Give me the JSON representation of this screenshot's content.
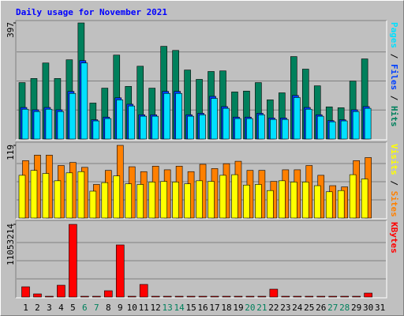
{
  "chart_data": [
    {
      "type": "bar",
      "title": "Daily usage for November 2021",
      "legend_separator": " / ",
      "ylim": [
        0,
        397
      ],
      "yticks": [
        397
      ],
      "series": [
        {
          "name": "Hits",
          "color": "#00805c",
          "values": [
            193,
            207,
            260,
            207,
            271,
            397,
            123,
            174,
            287,
            180,
            249,
            174,
            317,
            303,
            236,
            204,
            231,
            233,
            161,
            164,
            193,
            134,
            158,
            282,
            239,
            182,
            110,
            107,
            198,
            274,
            0
          ]
        },
        {
          "name": "Files",
          "color": "#0040ff",
          "values": [
            108,
            100,
            108,
            100,
            163,
            268,
            66,
            75,
            141,
            119,
            83,
            83,
            163,
            163,
            83,
            88,
            146,
            111,
            75,
            75,
            88,
            72,
            72,
            149,
            108,
            83,
            63,
            66,
            100,
            111,
            0
          ]
        },
        {
          "name": "Pages",
          "color": "#00e0ff",
          "values": [
            102,
            94,
            102,
            94,
            156,
            260,
            62,
            70,
            134,
            113,
            78,
            78,
            156,
            156,
            78,
            83,
            139,
            105,
            70,
            70,
            83,
            67,
            67,
            142,
            102,
            78,
            59,
            62,
            94,
            105,
            0
          ]
        }
      ]
    },
    {
      "type": "bar",
      "legend_separator": " / ",
      "ylim": [
        0,
        119
      ],
      "yticks": [
        119
      ],
      "series": [
        {
          "name": "Sites",
          "color": "#ff8000",
          "values": [
            94,
            103,
            103,
            86,
            91,
            83,
            55,
            78,
            119,
            84,
            76,
            85,
            79,
            85,
            76,
            88,
            81,
            89,
            93,
            78,
            78,
            60,
            79,
            79,
            86,
            70,
            53,
            51,
            94,
            99,
            0
          ]
        },
        {
          "name": "Visits",
          "color": "#ffff00",
          "values": [
            70,
            78,
            73,
            61,
            74,
            76,
            44,
            58,
            69,
            56,
            55,
            59,
            60,
            59,
            56,
            61,
            60,
            70,
            71,
            54,
            55,
            45,
            61,
            59,
            59,
            53,
            43,
            45,
            71,
            64,
            0
          ]
        }
      ]
    },
    {
      "type": "bar",
      "ylim": [
        0,
        11053214
      ],
      "yticks": [
        11053214
      ],
      "categories": [
        "1",
        "2",
        "3",
        "4",
        "5",
        "6",
        "7",
        "8",
        "9",
        "10",
        "11",
        "12",
        "13",
        "14",
        "15",
        "16",
        "17",
        "18",
        "19",
        "20",
        "21",
        "22",
        "23",
        "24",
        "25",
        "26",
        "27",
        "28",
        "29",
        "30",
        "31"
      ],
      "label_colors": [
        "#000000",
        "#000000",
        "#000000",
        "#000000",
        "#000000",
        "#00805c",
        "#00805c",
        "#000000",
        "#000000",
        "#000000",
        "#000000",
        "#000000",
        "#00805c",
        "#00805c",
        "#000000",
        "#000000",
        "#000000",
        "#000000",
        "#000000",
        "#00805c",
        "#00805c",
        "#000000",
        "#000000",
        "#000000",
        "#000000",
        "#000000",
        "#00805c",
        "#00805c",
        "#000000",
        "#000000",
        "#000000"
      ],
      "series": [
        {
          "name": "KBytes",
          "color": "#ff0000",
          "values": [
            1560000,
            480000,
            120000,
            1800000,
            11053214,
            120000,
            120000,
            960000,
            7930000,
            120000,
            1920000,
            120000,
            120000,
            120000,
            120000,
            120000,
            120000,
            120000,
            120000,
            120000,
            120000,
            1200000,
            120000,
            120000,
            120000,
            120000,
            120000,
            120000,
            120000,
            600000,
            0
          ]
        }
      ]
    }
  ]
}
